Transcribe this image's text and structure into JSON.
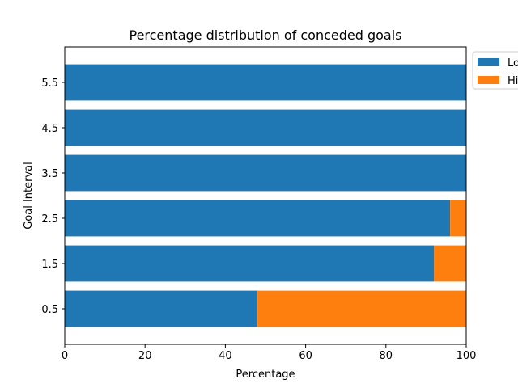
{
  "chart_data": {
    "type": "bar",
    "orientation": "horizontal",
    "stacked": true,
    "title": "Percentage distribution of conceded goals",
    "xlabel": "Percentage",
    "ylabel": "Goal Interval",
    "xlim": [
      0,
      100
    ],
    "xticks": [
      "0",
      "20",
      "40",
      "60",
      "80",
      "100"
    ],
    "categories": [
      "0.5",
      "1.5",
      "2.5",
      "3.5",
      "4.5",
      "5.5"
    ],
    "series": [
      {
        "name": "Lo",
        "color": "#1f77b4",
        "values": [
          48,
          92,
          96,
          100,
          100,
          100
        ]
      },
      {
        "name": "Hi",
        "color": "#ff7f0e",
        "values": [
          52,
          8,
          4,
          0,
          0,
          0
        ]
      }
    ],
    "legend_position": "top-right, clipped at figure edge",
    "grid": false
  }
}
